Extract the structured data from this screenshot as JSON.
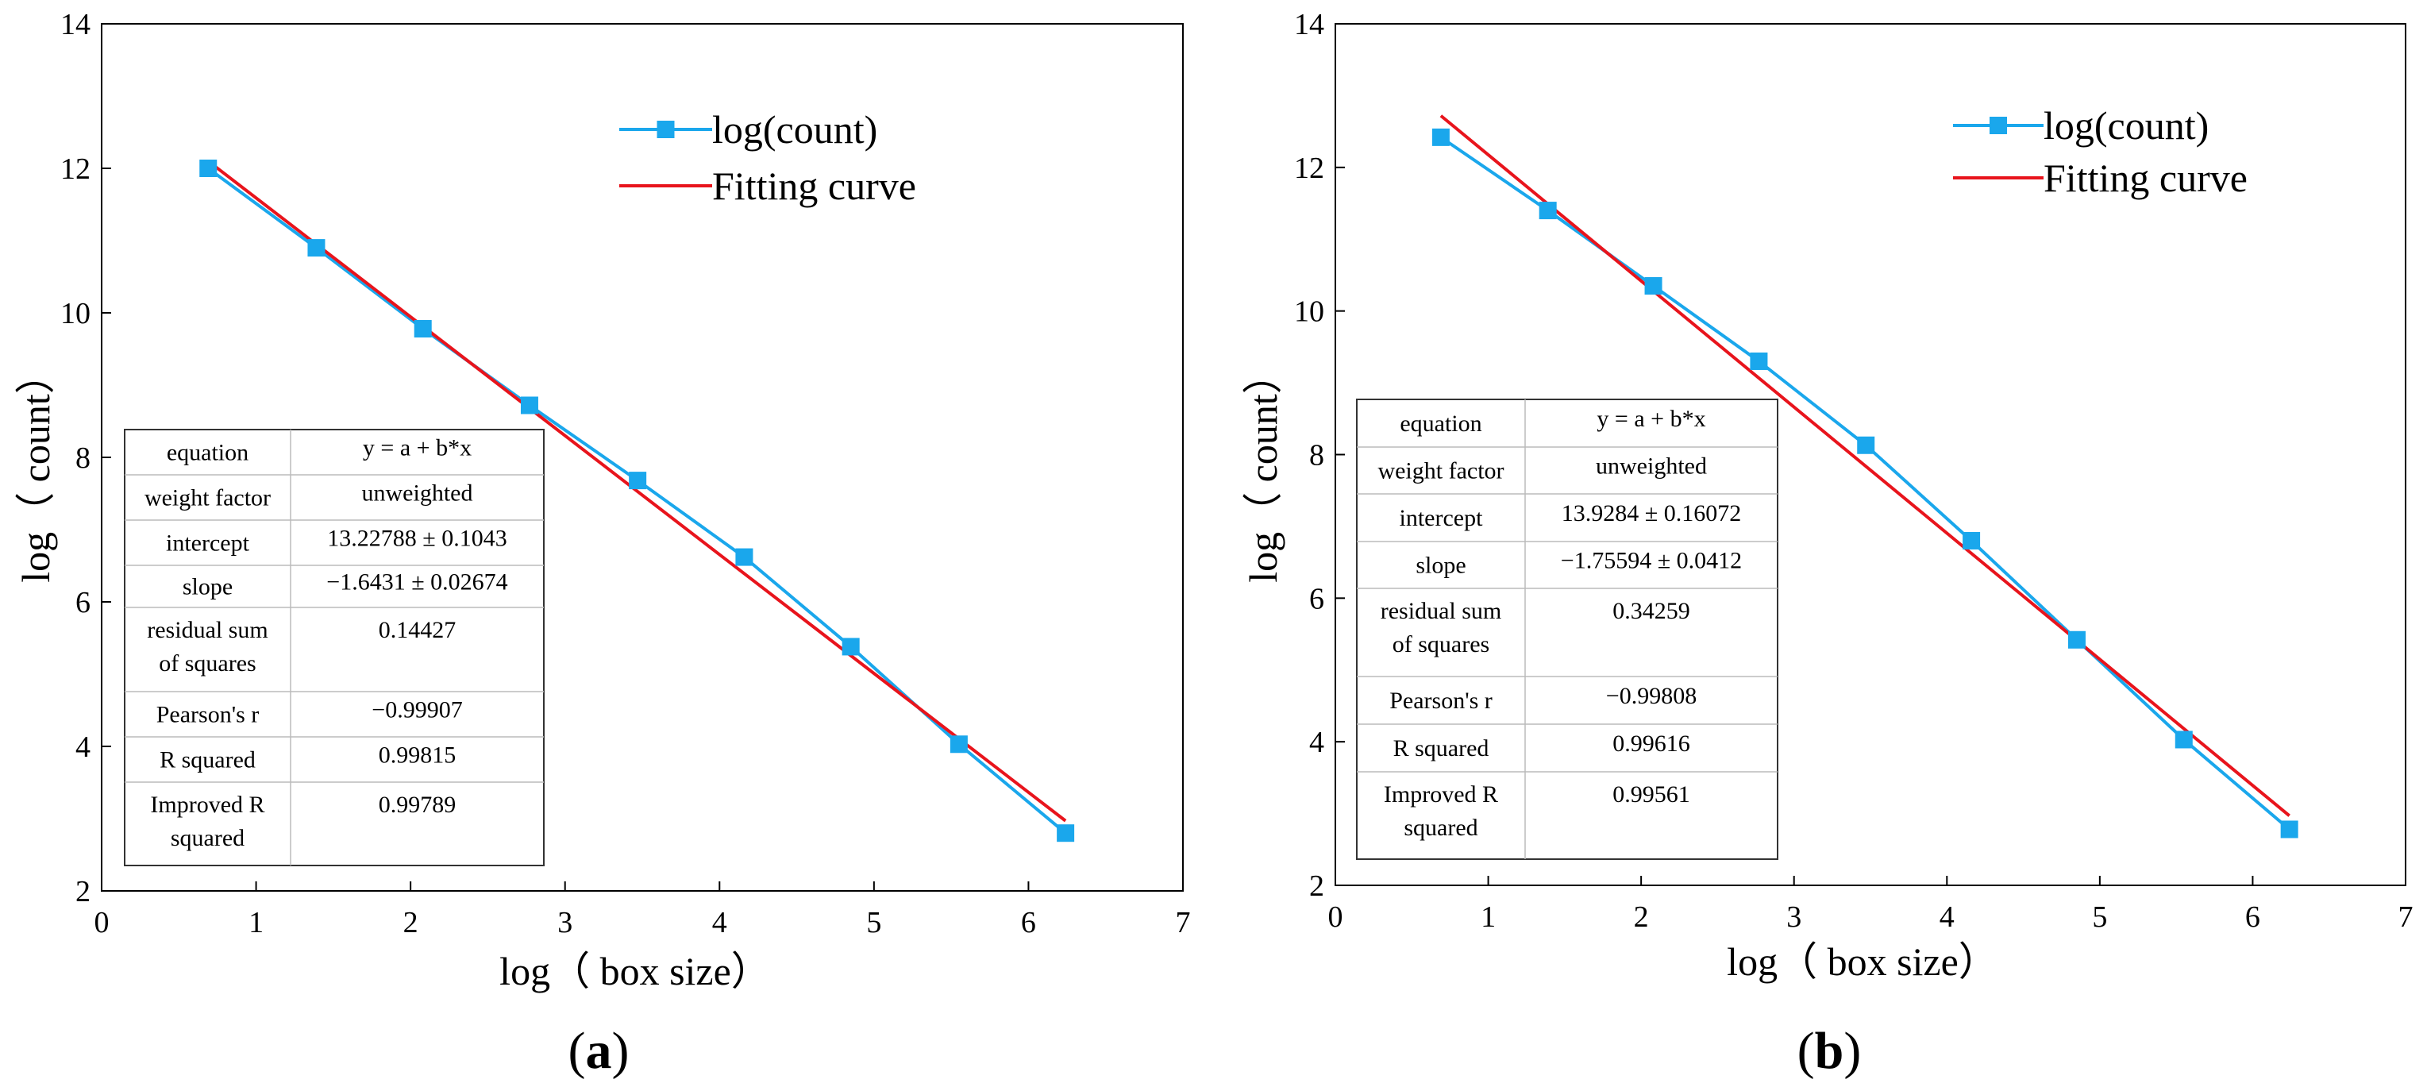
{
  "chart_data": [
    {
      "type": "line",
      "panel_label": "a",
      "xlabel": "log（ box size）",
      "ylabel": "log（ count）",
      "xlim": [
        0,
        7
      ],
      "ylim": [
        2,
        14
      ],
      "xticks": [
        "0",
        "1",
        "2",
        "3",
        "4",
        "5",
        "6",
        "7"
      ],
      "yticks": [
        "2",
        "4",
        "6",
        "8",
        "10",
        "12",
        "14"
      ],
      "legend_position": "top-right",
      "grid": false,
      "series": [
        {
          "name": "log(count)",
          "color": "#1aa7ec",
          "marker": "square",
          "x": [
            0.69,
            1.39,
            2.08,
            2.77,
            3.47,
            4.16,
            4.85,
            5.55,
            6.24
          ],
          "y": [
            12.0,
            10.9,
            9.78,
            8.72,
            7.68,
            6.62,
            5.38,
            4.03,
            2.8
          ]
        },
        {
          "name": "Fitting curve",
          "color": "#e8141c",
          "x": [
            0.69,
            6.24
          ],
          "y": [
            12.1,
            2.97
          ]
        }
      ],
      "fit_table": [
        {
          "label": "equation",
          "value": "y = a + b*x"
        },
        {
          "label": "weight factor",
          "value": "unweighted"
        },
        {
          "label": "intercept",
          "value": "13.22788 ± 0.1043"
        },
        {
          "label": "slope",
          "value": "−1.6431 ± 0.02674"
        },
        {
          "label": "residual sum of squares",
          "label_lines": [
            "residual sum",
            "of squares"
          ],
          "value": "0.14427"
        },
        {
          "label": "Pearson's r",
          "value": "−0.99907"
        },
        {
          "label": "R squared",
          "value": "0.99815"
        },
        {
          "label": "Improved R squared",
          "label_lines": [
            "Improved R",
            "squared"
          ],
          "value": "0.99789"
        }
      ]
    },
    {
      "type": "line",
      "panel_label": "b",
      "xlabel": "log（ box size）",
      "ylabel": "log（ count）",
      "xlim": [
        0,
        7
      ],
      "ylim": [
        2,
        14
      ],
      "xticks": [
        "0",
        "1",
        "2",
        "3",
        "4",
        "5",
        "6",
        "7"
      ],
      "yticks": [
        "2",
        "4",
        "6",
        "8",
        "10",
        "12",
        "14"
      ],
      "legend_position": "top-right",
      "grid": false,
      "series": [
        {
          "name": "log(count)",
          "color": "#1aa7ec",
          "marker": "square",
          "x": [
            0.69,
            1.39,
            2.08,
            2.77,
            3.47,
            4.16,
            4.85,
            5.55,
            6.24
          ],
          "y": [
            12.42,
            11.4,
            10.35,
            9.3,
            8.13,
            6.8,
            5.42,
            4.03,
            2.78
          ]
        },
        {
          "name": "Fitting curve",
          "color": "#e8141c",
          "x": [
            0.69,
            6.24
          ],
          "y": [
            12.72,
            2.97
          ]
        }
      ],
      "fit_table": [
        {
          "label": "equation",
          "value": "y = a + b*x"
        },
        {
          "label": "weight factor",
          "value": "unweighted"
        },
        {
          "label": "intercept",
          "value": "13.9284 ± 0.16072"
        },
        {
          "label": "slope",
          "value": "−1.75594 ± 0.0412"
        },
        {
          "label": "residual sum of squares",
          "label_lines": [
            "residual sum",
            "of squares"
          ],
          "value": "0.34259"
        },
        {
          "label": "Pearson's r",
          "value": "−0.99808"
        },
        {
          "label": "R squared",
          "value": "0.99616"
        },
        {
          "label": "Improved R squared",
          "label_lines": [
            "Improved R",
            "squared"
          ],
          "value": "0.99561"
        }
      ]
    }
  ]
}
